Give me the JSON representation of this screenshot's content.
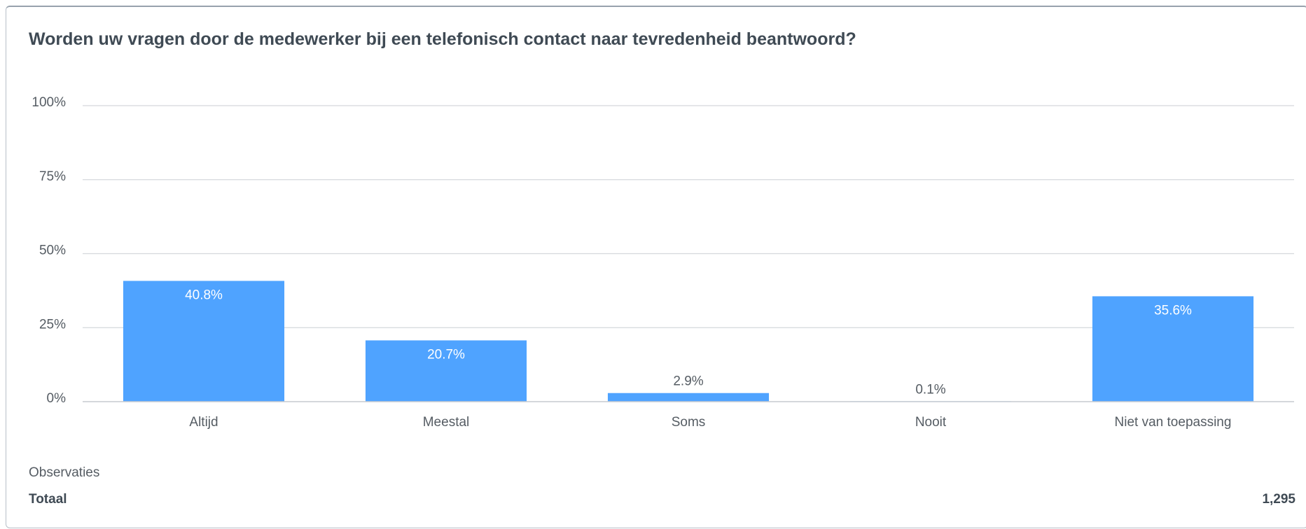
{
  "chart_data": {
    "type": "bar",
    "title": "Worden uw vragen door de medewerker bij een telefonisch contact naar tevredenheid beantwoord?",
    "categories": [
      "Altijd",
      "Meestal",
      "Soms",
      "Nooit",
      "Niet van toepassing"
    ],
    "values": [
      40.8,
      20.7,
      2.9,
      0.1,
      35.6
    ],
    "value_labels": [
      "40.8%",
      "20.7%",
      "2.9%",
      "0.1%",
      "35.6%"
    ],
    "ylim": [
      0,
      100
    ],
    "yticks": [
      0,
      25,
      50,
      75,
      100
    ],
    "ytick_labels": [
      "0%",
      "25%",
      "50%",
      "75%",
      "100%"
    ],
    "xlabel": "",
    "ylabel": "",
    "grid": true,
    "bar_color": "#4fa3ff",
    "grid_color": "#d5d8dc"
  },
  "footer": {
    "observations_label": "Observaties",
    "total_label": "Totaal",
    "total_value": "1,295"
  }
}
